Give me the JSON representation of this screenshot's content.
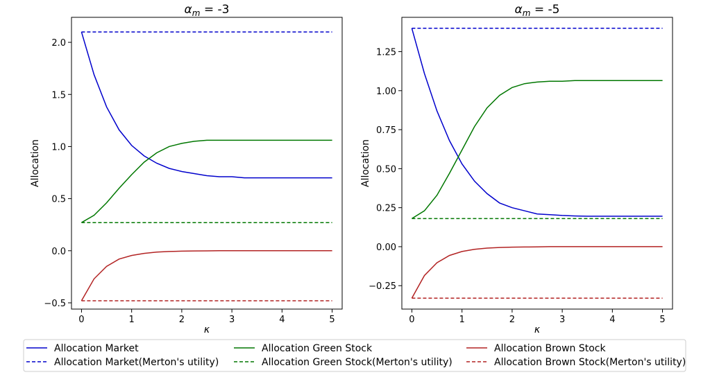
{
  "legend": {
    "position": "bottom",
    "columns": 3,
    "entries": [
      {
        "series_index": 0,
        "label": "Allocation Market"
      },
      {
        "series_index": 2,
        "label": "Allocation Green Stock"
      },
      {
        "series_index": 4,
        "label": "Allocation Brown Stock"
      },
      {
        "series_index": 1,
        "label": "Allocation Market(Merton's utility)"
      },
      {
        "series_index": 3,
        "label": "Allocation Green Stock(Merton's utility)"
      },
      {
        "series_index": 5,
        "label": "Allocation Brown Stock(Merton's utility)"
      }
    ]
  },
  "chart_data": [
    {
      "type": "line",
      "title_prefix": "α",
      "title_sub": "m",
      "title_value": " = -3",
      "xlabel": "κ",
      "ylabel": "Allocation",
      "xlim": [
        -0.2,
        5.2
      ],
      "ylim": [
        -0.56,
        2.24
      ],
      "xticks": [
        0,
        1,
        2,
        3,
        4,
        5
      ],
      "yticks": [
        -0.5,
        0.0,
        0.5,
        1.0,
        1.5,
        2.0
      ],
      "ytick_labels": [
        "−0.5",
        "0.0",
        "0.5",
        "1.0",
        "1.5",
        "2.0"
      ],
      "grid": false,
      "x": [
        0,
        0.25,
        0.5,
        0.75,
        1,
        1.25,
        1.5,
        1.75,
        2,
        2.25,
        2.5,
        2.75,
        3,
        3.25,
        3.5,
        3.75,
        4,
        4.25,
        4.5,
        4.75,
        5
      ],
      "series": [
        {
          "name": "Allocation Market",
          "color": "#0000cc",
          "dash": "solid",
          "values": [
            2.1,
            1.69,
            1.38,
            1.16,
            1.01,
            0.91,
            0.84,
            0.79,
            0.76,
            0.74,
            0.72,
            0.71,
            0.71,
            0.7,
            0.7,
            0.7,
            0.7,
            0.7,
            0.7,
            0.7,
            0.7
          ]
        },
        {
          "name": "Allocation Market(Merton's utility)",
          "color": "#0000cc",
          "dash": "dashed",
          "values": [
            2.1,
            2.1,
            2.1,
            2.1,
            2.1,
            2.1,
            2.1,
            2.1,
            2.1,
            2.1,
            2.1,
            2.1,
            2.1,
            2.1,
            2.1,
            2.1,
            2.1,
            2.1,
            2.1,
            2.1,
            2.1
          ]
        },
        {
          "name": "Allocation Green Stock",
          "color": "#007700",
          "dash": "solid",
          "values": [
            0.27,
            0.34,
            0.46,
            0.6,
            0.73,
            0.85,
            0.94,
            1.0,
            1.03,
            1.05,
            1.06,
            1.06,
            1.06,
            1.06,
            1.06,
            1.06,
            1.06,
            1.06,
            1.06,
            1.06,
            1.06
          ]
        },
        {
          "name": "Allocation Green Stock(Merton's utility)",
          "color": "#007700",
          "dash": "dashed",
          "values": [
            0.27,
            0.27,
            0.27,
            0.27,
            0.27,
            0.27,
            0.27,
            0.27,
            0.27,
            0.27,
            0.27,
            0.27,
            0.27,
            0.27,
            0.27,
            0.27,
            0.27,
            0.27,
            0.27,
            0.27,
            0.27
          ]
        },
        {
          "name": "Allocation Brown Stock",
          "color": "#b22222",
          "dash": "solid",
          "values": [
            -0.48,
            -0.27,
            -0.15,
            -0.08,
            -0.045,
            -0.025,
            -0.013,
            -0.007,
            -0.004,
            -0.002,
            -0.001,
            0,
            0,
            0,
            0,
            0,
            0,
            0,
            0,
            0,
            0
          ]
        },
        {
          "name": "Allocation Brown Stock(Merton's utility)",
          "color": "#b22222",
          "dash": "dashed",
          "values": [
            -0.48,
            -0.48,
            -0.48,
            -0.48,
            -0.48,
            -0.48,
            -0.48,
            -0.48,
            -0.48,
            -0.48,
            -0.48,
            -0.48,
            -0.48,
            -0.48,
            -0.48,
            -0.48,
            -0.48,
            -0.48,
            -0.48,
            -0.48,
            -0.48
          ]
        }
      ]
    },
    {
      "type": "line",
      "title_prefix": "α",
      "title_sub": "m",
      "title_value": " = -5",
      "xlabel": "κ",
      "ylabel": "Allocation",
      "xlim": [
        -0.2,
        5.2
      ],
      "ylim": [
        -0.4,
        1.47
      ],
      "xticks": [
        0,
        1,
        2,
        3,
        4,
        5
      ],
      "yticks": [
        -0.25,
        0.0,
        0.25,
        0.5,
        0.75,
        1.0,
        1.25
      ],
      "ytick_labels": [
        "−0.25",
        "0.00",
        "0.25",
        "0.50",
        "0.75",
        "1.00",
        "1.25"
      ],
      "grid": false,
      "x": [
        0,
        0.25,
        0.5,
        0.75,
        1,
        1.25,
        1.5,
        1.75,
        2,
        2.25,
        2.5,
        2.75,
        3,
        3.25,
        3.5,
        3.75,
        4,
        4.25,
        4.5,
        4.75,
        5
      ],
      "series": [
        {
          "name": "Allocation Market",
          "color": "#0000cc",
          "dash": "solid",
          "values": [
            1.4,
            1.11,
            0.87,
            0.68,
            0.53,
            0.42,
            0.34,
            0.28,
            0.25,
            0.23,
            0.21,
            0.205,
            0.2,
            0.197,
            0.195,
            0.195,
            0.195,
            0.195,
            0.195,
            0.195,
            0.195
          ]
        },
        {
          "name": "Allocation Market(Merton's utility)",
          "color": "#0000cc",
          "dash": "dashed",
          "values": [
            1.4,
            1.4,
            1.4,
            1.4,
            1.4,
            1.4,
            1.4,
            1.4,
            1.4,
            1.4,
            1.4,
            1.4,
            1.4,
            1.4,
            1.4,
            1.4,
            1.4,
            1.4,
            1.4,
            1.4,
            1.4
          ]
        },
        {
          "name": "Allocation Green Stock",
          "color": "#007700",
          "dash": "solid",
          "values": [
            0.18,
            0.23,
            0.33,
            0.47,
            0.62,
            0.77,
            0.89,
            0.97,
            1.02,
            1.045,
            1.055,
            1.06,
            1.06,
            1.065,
            1.065,
            1.065,
            1.065,
            1.065,
            1.065,
            1.065,
            1.065
          ]
        },
        {
          "name": "Allocation Green Stock(Merton's utility)",
          "color": "#007700",
          "dash": "dashed",
          "values": [
            0.18,
            0.18,
            0.18,
            0.18,
            0.18,
            0.18,
            0.18,
            0.18,
            0.18,
            0.18,
            0.18,
            0.18,
            0.18,
            0.18,
            0.18,
            0.18,
            0.18,
            0.18,
            0.18,
            0.18,
            0.18
          ]
        },
        {
          "name": "Allocation Brown Stock",
          "color": "#b22222",
          "dash": "solid",
          "values": [
            -0.33,
            -0.185,
            -0.103,
            -0.056,
            -0.031,
            -0.017,
            -0.009,
            -0.005,
            -0.003,
            -0.002,
            -0.001,
            0,
            0,
            0,
            0,
            0,
            0,
            0,
            0,
            0,
            0
          ]
        },
        {
          "name": "Allocation Brown Stock(Merton's utility)",
          "color": "#b22222",
          "dash": "dashed",
          "values": [
            -0.33,
            -0.33,
            -0.33,
            -0.33,
            -0.33,
            -0.33,
            -0.33,
            -0.33,
            -0.33,
            -0.33,
            -0.33,
            -0.33,
            -0.33,
            -0.33,
            -0.33,
            -0.33,
            -0.33,
            -0.33,
            -0.33,
            -0.33,
            -0.33
          ]
        }
      ]
    }
  ]
}
